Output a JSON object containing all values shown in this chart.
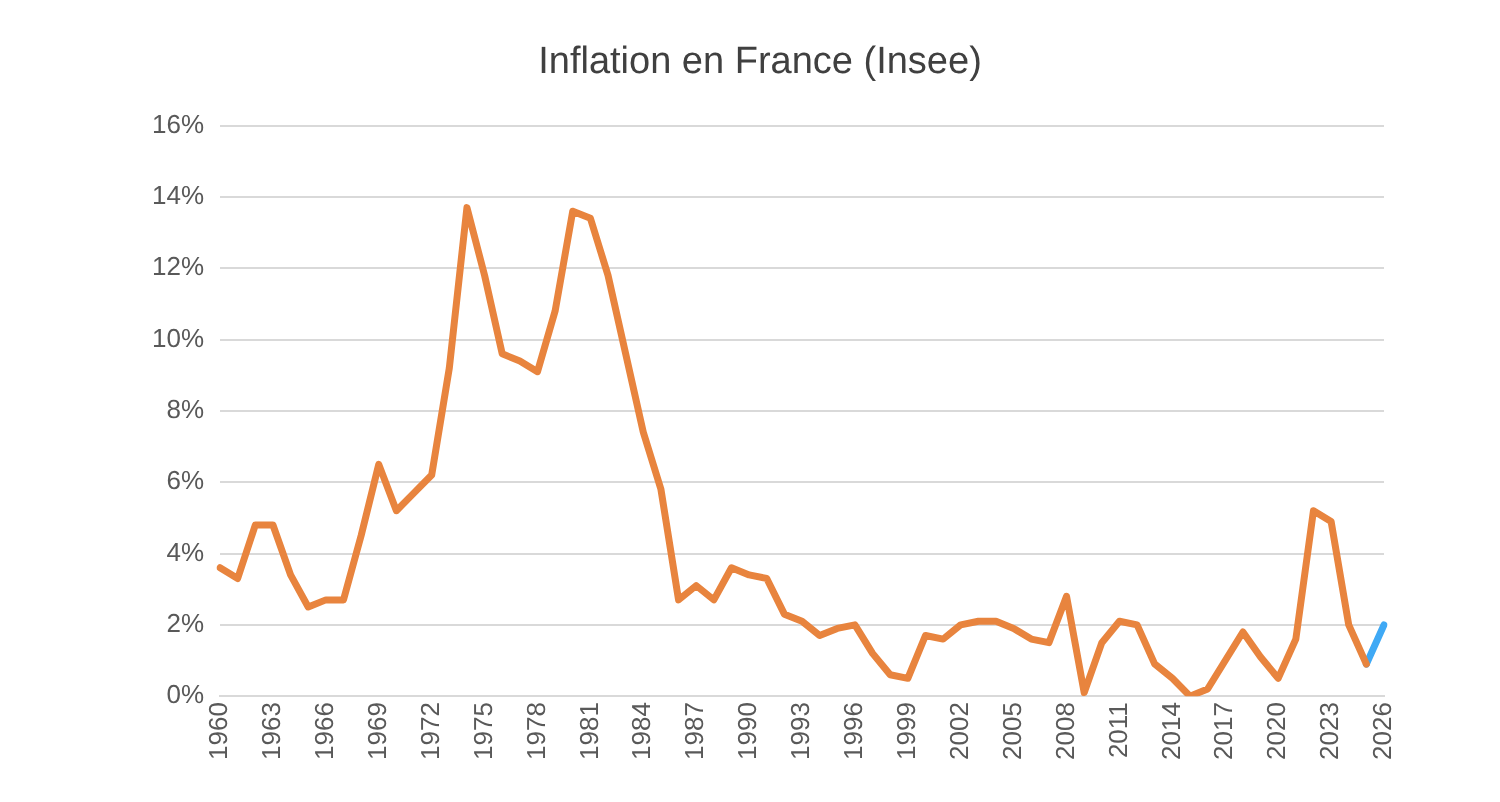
{
  "chart_data": {
    "type": "line",
    "title": "Inflation en France (Insee)",
    "categories": [
      "1960",
      null,
      null,
      "1963",
      null,
      null,
      "1966",
      null,
      null,
      "1969",
      null,
      null,
      "1972",
      null,
      null,
      "1975",
      null,
      null,
      "1978",
      null,
      null,
      "1981",
      null,
      null,
      "1984",
      null,
      null,
      "1987",
      null,
      null,
      "1990",
      null,
      null,
      "1993",
      null,
      null,
      "1996",
      null,
      null,
      "1999",
      null,
      null,
      "2002",
      null,
      null,
      "2005",
      null,
      null,
      "2008",
      null,
      null,
      "2011",
      null,
      null,
      "2014",
      null,
      null,
      "2017",
      null,
      null,
      "2020",
      null,
      null,
      "2023",
      null,
      null,
      "2026"
    ],
    "series": [
      {
        "color": "#e8843e",
        "values": [
          3.6,
          3.3,
          4.8,
          4.8,
          3.4,
          2.5,
          2.7,
          2.7,
          4.5,
          6.5,
          5.2,
          5.7,
          6.2,
          9.2,
          13.7,
          11.8,
          9.6,
          9.4,
          9.1,
          10.8,
          13.6,
          13.4,
          11.8,
          9.6,
          7.4,
          5.8,
          2.7,
          3.1,
          2.7,
          3.6,
          3.4,
          3.3,
          2.3,
          2.1,
          1.7,
          1.9,
          2.0,
          1.2,
          0.6,
          0.5,
          1.7,
          1.6,
          2.0,
          2.1,
          2.1,
          1.9,
          1.6,
          1.5,
          2.8,
          0.1,
          1.5,
          2.1,
          2.0,
          0.9,
          0.5,
          0.0,
          0.2,
          1.0,
          1.8,
          1.1,
          0.5,
          1.6,
          5.2,
          4.9,
          2.0,
          0.9,
          null
        ]
      },
      {
        "color": "#3fa9f5",
        "values": [
          null,
          null,
          null,
          null,
          null,
          null,
          null,
          null,
          null,
          null,
          null,
          null,
          null,
          null,
          null,
          null,
          null,
          null,
          null,
          null,
          null,
          null,
          null,
          null,
          null,
          null,
          null,
          null,
          null,
          null,
          null,
          null,
          null,
          null,
          null,
          null,
          null,
          null,
          null,
          null,
          null,
          null,
          null,
          null,
          null,
          null,
          null,
          null,
          null,
          null,
          null,
          null,
          null,
          null,
          null,
          null,
          null,
          null,
          null,
          null,
          null,
          null,
          null,
          null,
          null,
          0.9,
          2.0
        ]
      }
    ],
    "ylim": [
      0,
      16
    ],
    "yticks": [
      {
        "value": 0,
        "label": "0%"
      },
      {
        "value": 2,
        "label": "2%"
      },
      {
        "value": 4,
        "label": "4%"
      },
      {
        "value": 6,
        "label": "6%"
      },
      {
        "value": 8,
        "label": "8%"
      },
      {
        "value": 10,
        "label": "10%"
      },
      {
        "value": 12,
        "label": "12%"
      },
      {
        "value": 14,
        "label": "14%"
      },
      {
        "value": 16,
        "label": "16%"
      }
    ],
    "grid": "y",
    "legend": false,
    "marker": "none",
    "line_style": "solid"
  }
}
